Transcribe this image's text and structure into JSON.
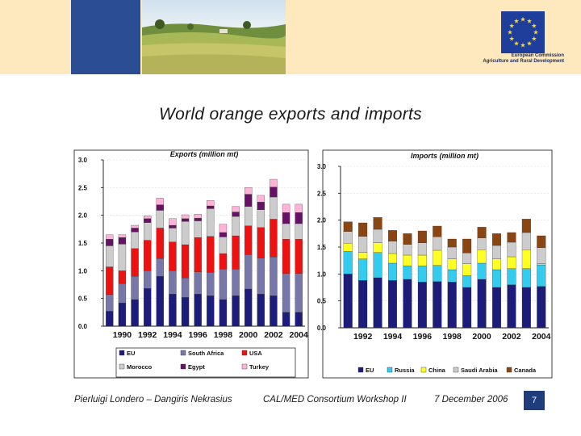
{
  "header": {
    "logo_text_line1": "European Commission",
    "logo_text_line2": "Agriculture and Rural Development",
    "colors": {
      "banner": "#fde9bd",
      "blue_panel": "#2b4d94"
    }
  },
  "slide": {
    "title": "World orange exports and imports"
  },
  "footer": {
    "authors": "Pierluigi Londero – Dangiris Nekrasius",
    "event": "CAL/MED Consortium Workshop II",
    "date": "7 December 2006",
    "page_number": "7"
  },
  "chart_data": [
    {
      "type": "bar",
      "stacked": true,
      "title": "Exports (million mt)",
      "ylim": [
        0,
        3.0
      ],
      "yticks": [
        "0.0",
        "0.5",
        "1.0",
        "1.5",
        "2.0",
        "2.5",
        "3.0"
      ],
      "ytick_values": [
        0,
        0.5,
        1.0,
        1.5,
        2.0,
        2.5,
        3.0
      ],
      "categories": [
        "1989",
        "1990",
        "1991",
        "1992",
        "1993",
        "1994",
        "1995",
        "1996",
        "1997",
        "1998",
        "1999",
        "2000",
        "2001",
        "2002",
        "2003",
        "2004"
      ],
      "xtick_labels": [
        "1990",
        "1992",
        "1994",
        "1996",
        "1998",
        "2000",
        "2002",
        "2004"
      ],
      "legend_position": "bottom",
      "series": [
        {
          "name": "EU",
          "color": "#1c1c7a",
          "values": [
            0.27,
            0.42,
            0.48,
            0.68,
            0.9,
            0.58,
            0.52,
            0.58,
            0.55,
            0.48,
            0.55,
            0.67,
            0.58,
            0.55,
            0.25,
            0.25
          ]
        },
        {
          "name": "South Africa",
          "color": "#7777aa",
          "values": [
            0.3,
            0.35,
            0.42,
            0.32,
            0.32,
            0.42,
            0.35,
            0.4,
            0.42,
            0.55,
            0.48,
            0.62,
            0.65,
            0.7,
            0.7,
            0.7
          ]
        },
        {
          "name": "USA",
          "color": "#ee1111",
          "values": [
            0.5,
            0.23,
            0.5,
            0.55,
            0.55,
            0.52,
            0.6,
            0.62,
            0.65,
            0.28,
            0.6,
            0.52,
            0.55,
            0.68,
            0.62,
            0.62
          ]
        },
        {
          "name": "Morocco",
          "color": "#cccccc",
          "values": [
            0.38,
            0.48,
            0.3,
            0.32,
            0.32,
            0.25,
            0.42,
            0.3,
            0.5,
            0.3,
            0.35,
            0.35,
            0.32,
            0.4,
            0.28,
            0.28
          ]
        },
        {
          "name": "Egypt",
          "color": "#661166",
          "values": [
            0.12,
            0.12,
            0.07,
            0.07,
            0.1,
            0.05,
            0.05,
            0.05,
            0.05,
            0.08,
            0.08,
            0.22,
            0.14,
            0.18,
            0.2,
            0.2
          ]
        },
        {
          "name": "Turkey",
          "color": "#ffb3d9",
          "values": [
            0.08,
            0.05,
            0.05,
            0.05,
            0.12,
            0.12,
            0.07,
            0.07,
            0.1,
            0.15,
            0.1,
            0.12,
            0.12,
            0.14,
            0.15,
            0.15
          ]
        }
      ]
    },
    {
      "type": "bar",
      "stacked": true,
      "title": "Imports (million mt)",
      "ylim": [
        0,
        3.0
      ],
      "yticks": [
        "0.0",
        "0.5",
        "1.0",
        "1.5",
        "2.0",
        "2.5",
        "3.0"
      ],
      "ytick_values": [
        0,
        0.5,
        1.0,
        1.5,
        2.0,
        2.5,
        3.0
      ],
      "categories": [
        "1991",
        "1992",
        "1993",
        "1994",
        "1995",
        "1996",
        "1997",
        "1998",
        "1999",
        "2000",
        "2001",
        "2002",
        "2003",
        "2004"
      ],
      "xtick_labels": [
        "1992",
        "1994",
        "1996",
        "1998",
        "2000",
        "2002",
        "2004"
      ],
      "legend_position": "bottom",
      "series": [
        {
          "name": "EU",
          "color": "#1c1c7a",
          "values": [
            1.0,
            0.88,
            0.93,
            0.88,
            0.9,
            0.85,
            0.86,
            0.85,
            0.75,
            0.9,
            0.75,
            0.8,
            0.75,
            0.77
          ]
        },
        {
          "name": "Russia",
          "color": "#33ccee",
          "values": [
            0.42,
            0.4,
            0.47,
            0.32,
            0.25,
            0.3,
            0.3,
            0.23,
            0.22,
            0.3,
            0.33,
            0.3,
            0.35,
            0.4
          ]
        },
        {
          "name": "China",
          "color": "#ffff22",
          "values": [
            0.15,
            0.12,
            0.18,
            0.18,
            0.2,
            0.2,
            0.28,
            0.2,
            0.22,
            0.25,
            0.2,
            0.22,
            0.35,
            0.02
          ]
        },
        {
          "name": "Saudi Arabia",
          "color": "#cccccc",
          "values": [
            0.22,
            0.3,
            0.25,
            0.23,
            0.2,
            0.23,
            0.25,
            0.22,
            0.2,
            0.22,
            0.25,
            0.27,
            0.32,
            0.3
          ]
        },
        {
          "name": "Canada",
          "color": "#8b4513",
          "values": [
            0.18,
            0.25,
            0.22,
            0.2,
            0.2,
            0.22,
            0.2,
            0.15,
            0.26,
            0.2,
            0.22,
            0.18,
            0.25,
            0.22
          ]
        }
      ]
    }
  ]
}
